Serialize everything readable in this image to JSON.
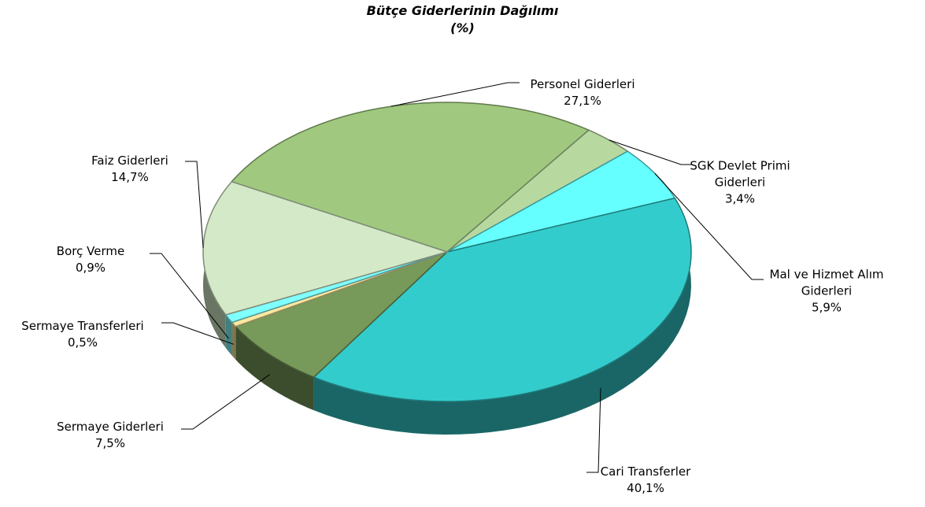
{
  "chart_data": {
    "type": "pie",
    "title": "Bütçe Giderlerinin Dağılımı",
    "subtitle": "(%)",
    "categories": [
      "Personel Giderleri",
      "SGK Devlet Primi Giderleri",
      "Mal ve Hizmet Alım Giderleri",
      "Cari Transferler",
      "Sermaye Giderleri",
      "Sermaye Transferleri",
      "Borç Verme",
      "Faiz Giderleri"
    ],
    "values": [
      27.1,
      3.4,
      5.9,
      40.1,
      7.5,
      0.5,
      0.9,
      14.7
    ],
    "value_labels": [
      "27,1%",
      "3,4%",
      "5,9%",
      "40,1%",
      "7,5%",
      "0,5%",
      "0,9%",
      "14,7%"
    ],
    "colors": [
      "#a0c97f",
      "#b7d9a0",
      "#66ffff",
      "#33cccc",
      "#77995a",
      "#ffe9a0",
      "#80ffff",
      "#d4e9c8"
    ]
  }
}
